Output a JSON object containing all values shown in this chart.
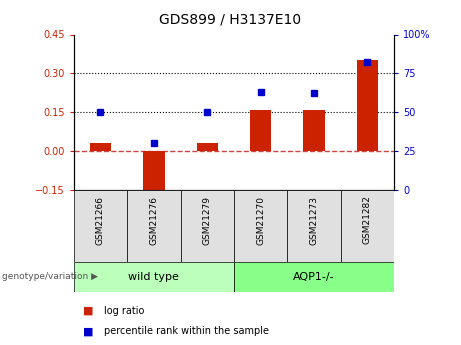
{
  "title": "GDS899 / H3137E10",
  "categories": [
    "GSM21266",
    "GSM21276",
    "GSM21279",
    "GSM21270",
    "GSM21273",
    "GSM21282"
  ],
  "log_ratios": [
    0.03,
    -0.17,
    0.03,
    0.16,
    0.16,
    0.35
  ],
  "percentile_ranks": [
    50,
    30,
    50,
    63,
    62,
    82
  ],
  "ylim_left": [
    -0.15,
    0.45
  ],
  "ylim_right": [
    0,
    100
  ],
  "bar_color": "#cc2200",
  "dot_color": "#0000cc",
  "hline_zero_color": "#cc4444",
  "hline_dotted_color": "#000000",
  "group1_label": "wild type",
  "group2_label": "AQP1-/-",
  "group1_color": "#bbffbb",
  "group2_color": "#88ff88",
  "genotype_label": "genotype/variation",
  "legend_entries": [
    "log ratio",
    "percentile rank within the sample"
  ],
  "ytick_left": [
    -0.15,
    0.0,
    0.15,
    0.3,
    0.45
  ],
  "ytick_right": [
    0,
    25,
    50,
    75,
    100
  ],
  "bg_color": "#e0e0e0"
}
